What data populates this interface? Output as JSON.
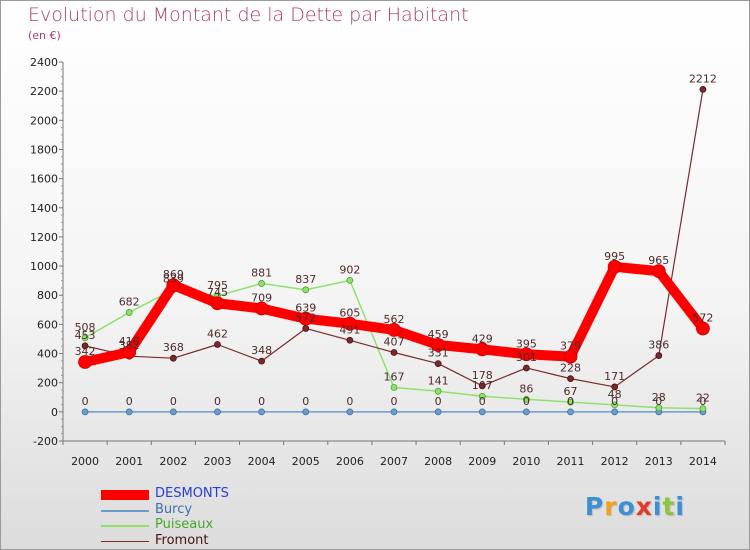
{
  "chart_title": "Evolution du Montant de la Dette par Habitant",
  "chart_subtitle": "(en €)",
  "brand": {
    "text": "Proxiti",
    "letter_colors": [
      "#3b8fd6",
      "#f0a21b",
      "#3b8fd6",
      "#e23a24",
      "#3b8fd6",
      "#8cc63f",
      "#3b8fd6"
    ]
  },
  "chart_data": {
    "type": "line",
    "x": [
      2000,
      2001,
      2002,
      2003,
      2004,
      2005,
      2006,
      2007,
      2008,
      2009,
      2010,
      2011,
      2012,
      2013,
      2014
    ],
    "ylim": [
      -200,
      2400
    ],
    "yticks": [
      -200,
      0,
      200,
      400,
      600,
      800,
      1000,
      1200,
      1400,
      1600,
      1800,
      2000,
      2200,
      2400
    ],
    "grid": false,
    "legend_placement": "bottom-left",
    "series": [
      {
        "name": "DESMONTS",
        "color": "#ff0000",
        "label_color": "#4e2a2a",
        "values": [
          342,
          410,
          869,
          745,
          709,
          639,
          605,
          562,
          459,
          429,
          395,
          379,
          995,
          965,
          572
        ],
        "labels": [
          "342",
          "410",
          "869",
          "745",
          "709",
          "639",
          "605",
          "562",
          "459",
          "429",
          "395",
          "379",
          "995",
          "965",
          "572"
        ]
      },
      {
        "name": "Burcy",
        "color": "#6c9ccc",
        "label_color": "#4e2a2a",
        "values": [
          0,
          0,
          0,
          0,
          0,
          0,
          0,
          0,
          0,
          0,
          0,
          0,
          0,
          0,
          0
        ],
        "labels": [
          "0",
          "0",
          "0",
          "0",
          "0",
          "0",
          "0",
          "0",
          "0",
          "0",
          "0",
          "0",
          "0",
          "0",
          "0"
        ]
      },
      {
        "name": "Puiseaux",
        "color": "#90e070",
        "label_color": "#4e2a2a",
        "values": [
          508,
          682,
          839,
          795,
          881,
          837,
          902,
          167,
          141,
          107,
          86,
          67,
          48,
          28,
          22
        ],
        "labels": [
          "508",
          "682",
          "839",
          "795",
          "881",
          "837",
          "902",
          "167",
          "141",
          "107",
          "86",
          "67",
          "48",
          "28",
          "22"
        ]
      },
      {
        "name": "Fromont",
        "color": "#7a2a2a",
        "label_color": "#4e2a2a",
        "values": [
          453,
          382,
          368,
          462,
          348,
          572,
          491,
          407,
          331,
          178,
          301,
          228,
          171,
          386,
          2212
        ],
        "labels": [
          "453",
          "382",
          "368",
          "462",
          "348",
          "572",
          "491",
          "407",
          "331",
          "178",
          "301",
          "228",
          "171",
          "386",
          "2212"
        ]
      }
    ]
  }
}
